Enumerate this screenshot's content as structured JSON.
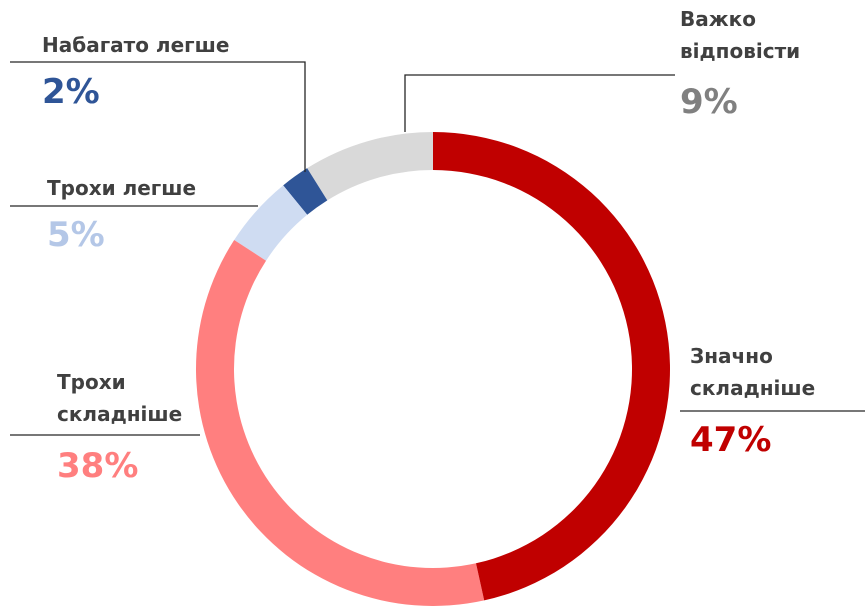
{
  "chart_data": {
    "type": "pie",
    "categories": [
      "Значно складніше",
      "Трохи складніше",
      "Трохи легше",
      "Набагато легше",
      "Важко відповісти"
    ],
    "values": [
      47,
      38,
      5,
      2,
      9
    ],
    "value_labels": [
      "47%",
      "38%",
      "5%",
      "2%",
      "9%"
    ],
    "colors": [
      "#c00000",
      "#ff7f7f",
      "#cfdcf2",
      "#2f5597",
      "#d9d9d9"
    ],
    "label_colors": [
      "#c00000",
      "#ff7f7f",
      "#b4c7e7",
      "#2f5597",
      "#808080"
    ]
  }
}
